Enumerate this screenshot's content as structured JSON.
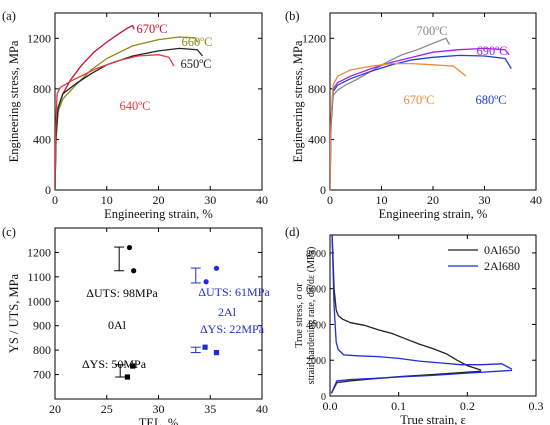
{
  "chart_data": [
    {
      "panel_label": "(a)",
      "type": "line",
      "xlabel": "Engineering strain, %",
      "ylabel": "Engineering stress, MPa",
      "xlim": [
        0,
        40
      ],
      "ylim": [
        0,
        1400
      ],
      "xticks": [
        0,
        10,
        20,
        30,
        40
      ],
      "yticks": [
        0,
        400,
        800,
        1200
      ],
      "series": [
        {
          "name": "670ºC",
          "color": "#c8102e",
          "x": [
            0,
            0.2,
            0.6,
            1.5,
            3,
            5,
            7.5,
            10,
            12.5,
            14,
            15,
            15.3
          ],
          "y": [
            0,
            400,
            650,
            760,
            870,
            980,
            1090,
            1170,
            1240,
            1280,
            1300,
            1270
          ]
        },
        {
          "name": "660ºC",
          "color": "#8b8b1a",
          "x": [
            0,
            0.2,
            0.6,
            1.5,
            4,
            7,
            10,
            15,
            20,
            24,
            27,
            27.6
          ],
          "y": [
            0,
            420,
            620,
            720,
            830,
            950,
            1040,
            1140,
            1190,
            1210,
            1205,
            1170
          ]
        },
        {
          "name": "650ºC",
          "color": "#222222",
          "x": [
            0,
            0.2,
            0.6,
            1.5,
            4,
            7,
            10,
            15,
            20,
            24,
            27.5,
            28.5
          ],
          "y": [
            0,
            420,
            650,
            760,
            840,
            920,
            990,
            1060,
            1100,
            1120,
            1110,
            1060
          ]
        },
        {
          "name": "640ºC",
          "color": "#e23b3b",
          "x": [
            0,
            0.15,
            0.4,
            1,
            3,
            5,
            8,
            12,
            16,
            20,
            22,
            23
          ],
          "y": [
            0,
            500,
            760,
            810,
            860,
            900,
            960,
            1020,
            1060,
            1070,
            1050,
            980
          ]
        }
      ],
      "annotations": [
        "670ºC",
        "660ºC",
        "650ºC",
        "640ºC"
      ]
    },
    {
      "panel_label": "(b)",
      "type": "line",
      "xlabel": "Engineering strain, %",
      "ylabel": "Engineering stress, MPa",
      "xlim": [
        0,
        40
      ],
      "ylim": [
        0,
        1400
      ],
      "xticks": [
        0,
        10,
        20,
        30,
        40
      ],
      "yticks": [
        0,
        400,
        800,
        1200
      ],
      "series": [
        {
          "name": "700ºC",
          "color": "#888888",
          "x": [
            0,
            0.2,
            0.6,
            1.5,
            3,
            5,
            8,
            11,
            14,
            17,
            20,
            22.5,
            23.2
          ],
          "y": [
            0,
            500,
            750,
            790,
            830,
            870,
            940,
            1010,
            1070,
            1110,
            1160,
            1200,
            1150
          ]
        },
        {
          "name": "690ºC",
          "color": "#a020f0",
          "x": [
            0,
            0.2,
            0.6,
            1.5,
            4,
            8,
            12,
            16,
            20,
            25,
            30,
            34,
            34.8
          ],
          "y": [
            0,
            520,
            800,
            850,
            900,
            960,
            1010,
            1050,
            1090,
            1110,
            1120,
            1110,
            1070
          ]
        },
        {
          "name": "680ºC",
          "color": "#1f3fd6",
          "x": [
            0,
            0.2,
            0.6,
            1.5,
            4,
            8,
            12,
            16,
            20,
            25,
            30,
            34,
            35.2
          ],
          "y": [
            0,
            520,
            780,
            830,
            880,
            940,
            990,
            1030,
            1050,
            1065,
            1060,
            1040,
            960
          ]
        },
        {
          "name": "670ºC",
          "color": "#f08a3c",
          "x": [
            0,
            0.2,
            0.6,
            1.5,
            4,
            8,
            12,
            16,
            20,
            24,
            26.4
          ],
          "y": [
            0,
            550,
            830,
            900,
            950,
            980,
            1000,
            1000,
            990,
            980,
            900
          ]
        }
      ],
      "annotations": [
        "700ºC",
        "690ºC",
        "680ºC",
        "670ºC"
      ]
    },
    {
      "panel_label": "(c)",
      "type": "scatter",
      "xlabel": "TEL, %",
      "ylabel": "YS / UTS, MPa",
      "xlim": [
        20,
        40
      ],
      "ylim": [
        600,
        1300
      ],
      "xticks": [
        20,
        25,
        30,
        35,
        40
      ],
      "yticks": [
        700,
        800,
        900,
        1000,
        1100,
        1200
      ],
      "series": [
        {
          "name": "0Al UTS",
          "color": "#000000",
          "marker": "circle",
          "points": [
            [
              27.2,
              1220
            ],
            [
              27.6,
              1125
            ]
          ]
        },
        {
          "name": "0Al YS",
          "color": "#000000",
          "marker": "square",
          "points": [
            [
              27.5,
              735
            ],
            [
              27.0,
              690
            ]
          ]
        },
        {
          "name": "2Al UTS",
          "color": "#1f2bd8",
          "marker": "circle",
          "points": [
            [
              35.6,
              1135
            ],
            [
              34.6,
              1080
            ]
          ]
        },
        {
          "name": "2Al YS",
          "color": "#1f2bd8",
          "marker": "square",
          "points": [
            [
              34.5,
              812
            ],
            [
              35.6,
              790
            ]
          ]
        }
      ],
      "error_bars": [
        {
          "color": "#000000",
          "x": 26.2,
          "y_low": 1125,
          "y_high": 1222
        },
        {
          "color": "#000000",
          "x": 26.3,
          "y_low": 690,
          "y_high": 740
        },
        {
          "color": "#1f2bd8",
          "x": 33.6,
          "y_low": 1075,
          "y_high": 1136
        },
        {
          "color": "#1f2bd8",
          "x": 33.6,
          "y_low": 790,
          "y_high": 812
        }
      ],
      "annotations": [
        {
          "text": "ΔUTS: 98MPa",
          "color": "#000000"
        },
        {
          "text": "0Al",
          "color": "#000000"
        },
        {
          "text": "ΔYS: 50MPa",
          "color": "#000000"
        },
        {
          "text": "ΔUTS: 61MPa",
          "color": "#1f2bd8"
        },
        {
          "text": "2Al",
          "color": "#1f2bd8"
        },
        {
          "text": "ΔYS: 22MPa",
          "color": "#1f2bd8"
        }
      ]
    },
    {
      "panel_label": "(d)",
      "type": "line",
      "xlabel": "True strain, ε",
      "ylabel_lines": [
        "True stress, σ or",
        "strain hardening rate, dσ/dε (MPa)"
      ],
      "xlim": [
        0,
        0.3
      ],
      "ylim": [
        0,
        9000
      ],
      "xticks": [
        0.0,
        0.1,
        0.2,
        0.3
      ],
      "yticks": [
        0,
        2000,
        4000,
        6000,
        8000
      ],
      "legend": "top-right",
      "series": [
        {
          "name": "0Al650",
          "color": "#222222",
          "role": "hardening rate",
          "x": [
            0.003,
            0.006,
            0.009,
            0.012,
            0.018,
            0.03,
            0.05,
            0.07,
            0.09,
            0.11,
            0.13,
            0.15,
            0.17,
            0.185,
            0.2,
            0.22
          ],
          "y": [
            9000,
            6000,
            4800,
            4500,
            4300,
            4100,
            3950,
            3700,
            3500,
            3200,
            2900,
            2650,
            2350,
            2000,
            1700,
            1450
          ]
        },
        {
          "name": "0Al650",
          "color": "#222222",
          "role": "true stress",
          "x": [
            0.002,
            0.01,
            0.03,
            0.06,
            0.1,
            0.15,
            0.2,
            0.22
          ],
          "y": [
            150,
            750,
            850,
            950,
            1080,
            1200,
            1330,
            1380
          ]
        },
        {
          "name": "2Al680",
          "color": "#1f2bd8",
          "role": "hardening rate",
          "x": [
            0.003,
            0.006,
            0.009,
            0.012,
            0.02,
            0.04,
            0.07,
            0.1,
            0.13,
            0.16,
            0.19,
            0.22,
            0.25,
            0.265
          ],
          "y": [
            9000,
            5000,
            3000,
            2600,
            2300,
            2250,
            2200,
            2100,
            1950,
            1850,
            1750,
            1750,
            1800,
            1500
          ]
        },
        {
          "name": "2Al680",
          "color": "#1f2bd8",
          "role": "true stress",
          "x": [
            0.002,
            0.01,
            0.03,
            0.06,
            0.1,
            0.15,
            0.2,
            0.265
          ],
          "y": [
            150,
            850,
            920,
            980,
            1060,
            1150,
            1280,
            1430
          ]
        }
      ]
    }
  ]
}
